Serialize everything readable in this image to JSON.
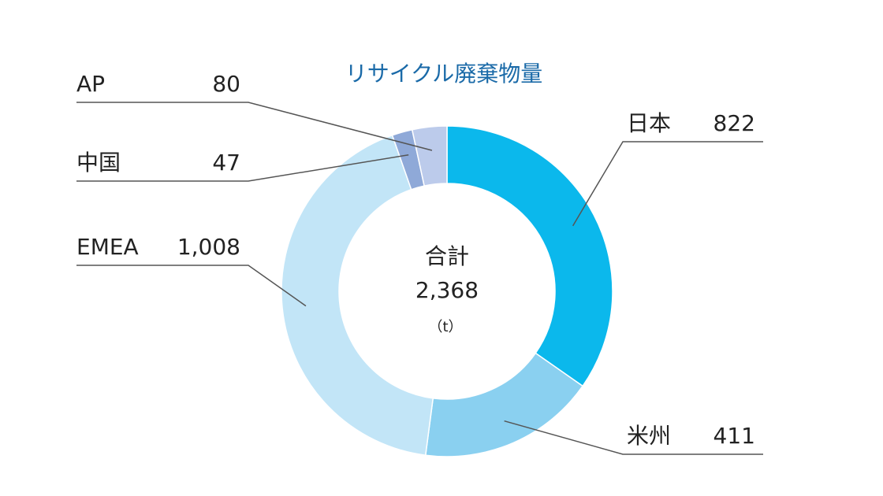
{
  "chart_data": {
    "type": "donut",
    "title": "リサイクル廃棄物量",
    "categories": [
      "日本",
      "米州",
      "EMEA",
      "中国",
      "AP"
    ],
    "values": [
      822,
      411,
      1008,
      47,
      80
    ],
    "value_labels": [
      "822",
      "411",
      "1,008",
      "47",
      "80"
    ],
    "colors": [
      "#0bb8ec",
      "#8ad0f0",
      "#c2e5f7",
      "#8fa9d8",
      "#bccbeb"
    ],
    "center_label": "合計",
    "total": 2368,
    "total_label": "2,368",
    "unit": "（t）"
  }
}
